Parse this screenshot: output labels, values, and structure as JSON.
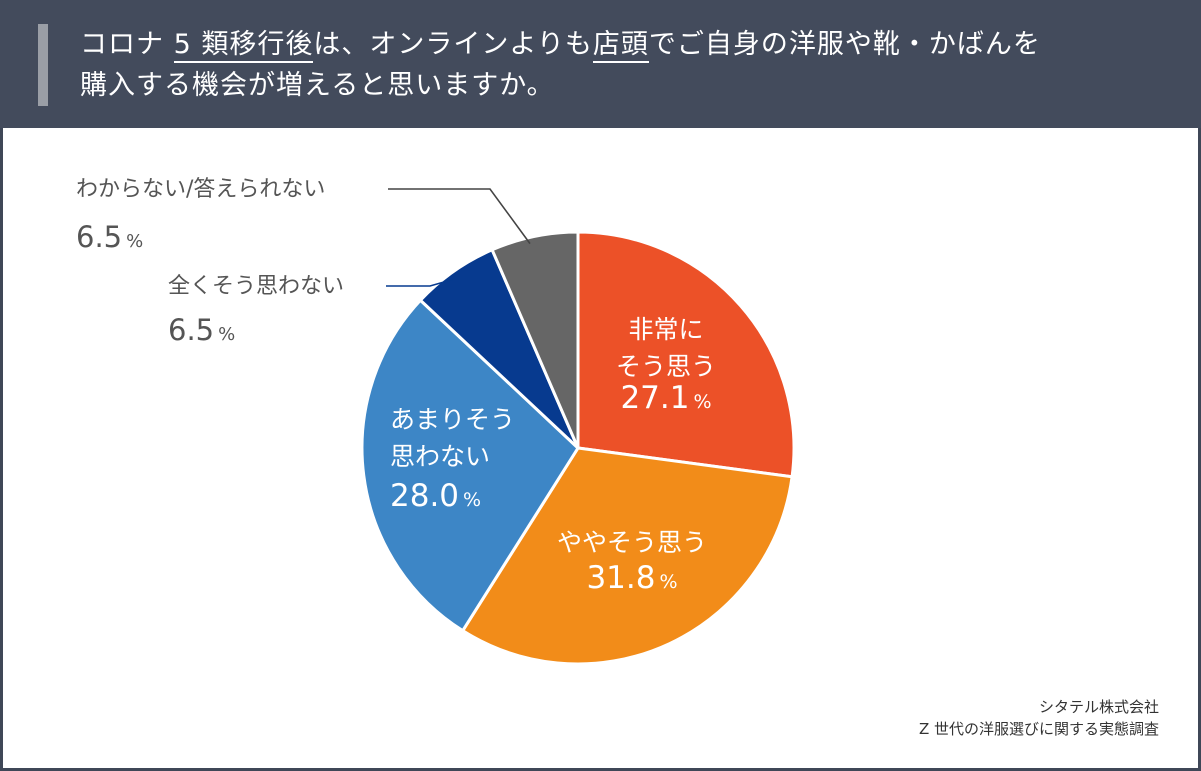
{
  "header": {
    "title_part1": "コロナ",
    "title_underlined1": "5 類移行後",
    "title_part2": "は、オンラインよりも",
    "title_underlined2": "店頭",
    "title_part3": "でご自身の洋服や靴・かばんを",
    "title_line2": "購入する機会が増えると思いますか。"
  },
  "source": {
    "line1": "シタテル株式会社",
    "line2": "Z 世代の洋服選びに関する実態調査"
  },
  "colors": {
    "header_bg": "#434b5c",
    "panel_bg": "#ffffff",
    "strongly_agree": "#ec5128",
    "somewhat_agree": "#f28c19",
    "somewhat_disagree": "#3d86c6",
    "strongly_disagree": "#073a8f",
    "unknown": "#666666"
  },
  "chart_data": {
    "type": "pie",
    "title": "コロナ 5 類移行後は、オンラインよりも店頭でご自身の洋服や靴・かばんを購入する機会が増えると思いますか。",
    "start": "12 o'clock, clockwise",
    "slices": [
      {
        "key": "strongly_agree",
        "label_lines": [
          "非常に",
          "そう思う"
        ],
        "value": 27.1,
        "value_text": "27.1",
        "unit": "%"
      },
      {
        "key": "somewhat_agree",
        "label_lines": [
          "ややそう思う"
        ],
        "value": 31.8,
        "value_text": "31.8",
        "unit": "%"
      },
      {
        "key": "somewhat_disagree",
        "label_lines": [
          "あまりそう",
          "思わない"
        ],
        "value": 28.0,
        "value_text": "28.0",
        "unit": "%"
      },
      {
        "key": "strongly_disagree",
        "label_lines": [
          "全くそう思わない"
        ],
        "value": 6.5,
        "value_text": "6.5",
        "unit": "%"
      },
      {
        "key": "unknown",
        "label_lines": [
          "わからない/答えられない"
        ],
        "value": 6.5,
        "value_text": "6.5",
        "unit": "%"
      }
    ]
  }
}
